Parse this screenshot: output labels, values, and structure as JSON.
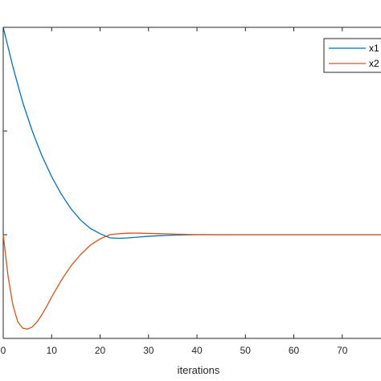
{
  "chart_data": {
    "type": "line",
    "title": "",
    "xlabel": "iterations",
    "ylabel": "",
    "xlim": [
      0,
      78
    ],
    "ylim": [
      -1,
      2
    ],
    "x_ticks": [
      0,
      10,
      20,
      30,
      40,
      50,
      60,
      70
    ],
    "grid": false,
    "legend_position": "top-right",
    "series": [
      {
        "name": "x1",
        "color": "#0072BD",
        "x": [
          0,
          2,
          4,
          6,
          8,
          10,
          12,
          14,
          16,
          18,
          20,
          22,
          24,
          26,
          28,
          30,
          32,
          34,
          36,
          38,
          40,
          45,
          50,
          60,
          70,
          78
        ],
        "y": [
          2.0,
          1.62,
          1.28,
          1.0,
          0.76,
          0.56,
          0.39,
          0.25,
          0.14,
          0.06,
          0.01,
          -0.03,
          -0.035,
          -0.03,
          -0.022,
          -0.015,
          -0.01,
          -0.006,
          -0.003,
          -0.001,
          0.0,
          0.0,
          0.0,
          0.0,
          0.0,
          0.0
        ]
      },
      {
        "name": "x2",
        "color": "#D95319",
        "x": [
          0,
          1,
          2,
          3,
          4,
          5,
          6,
          7,
          8,
          9,
          10,
          12,
          14,
          16,
          18,
          20,
          22,
          24,
          26,
          28,
          30,
          32,
          34,
          36,
          38,
          40,
          45,
          50,
          60,
          70,
          78
        ],
        "y": [
          0.0,
          -0.4,
          -0.68,
          -0.84,
          -0.9,
          -0.91,
          -0.89,
          -0.84,
          -0.77,
          -0.69,
          -0.6,
          -0.44,
          -0.3,
          -0.19,
          -0.1,
          -0.04,
          0.0,
          0.01,
          0.015,
          0.015,
          0.012,
          0.01,
          0.008,
          0.005,
          0.003,
          0.001,
          0.0,
          0.0,
          0.0,
          0.0,
          0.0
        ]
      }
    ]
  }
}
